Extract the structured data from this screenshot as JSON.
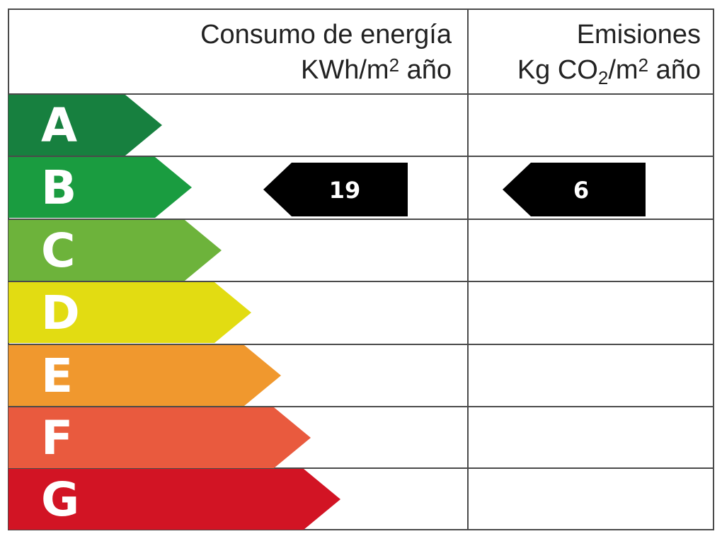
{
  "energy_label": {
    "header": {
      "consumption_title": "Consumo de energía",
      "consumption_unit_prefix": "KWh/m",
      "consumption_unit_exp": "2",
      "consumption_unit_suffix": " año",
      "emissions_title": "Emisiones",
      "emissions_unit_prefix": "Kg CO",
      "emissions_unit_sub": "2",
      "emissions_unit_mid": "/m",
      "emissions_unit_exp": "2",
      "emissions_unit_suffix": " año"
    },
    "bands": [
      {
        "letter": "A",
        "color": "#17803f"
      },
      {
        "letter": "B",
        "color": "#1a9c40"
      },
      {
        "letter": "C",
        "color": "#6db33b"
      },
      {
        "letter": "D",
        "color": "#e2dc12"
      },
      {
        "letter": "E",
        "color": "#f0982e"
      },
      {
        "letter": "F",
        "color": "#e95a3e"
      },
      {
        "letter": "G",
        "color": "#d21424"
      }
    ],
    "consumption_rating": {
      "band": "B",
      "value": "19"
    },
    "emissions_rating": {
      "band": "B",
      "value": "6"
    },
    "indicator_color": "#000000"
  }
}
